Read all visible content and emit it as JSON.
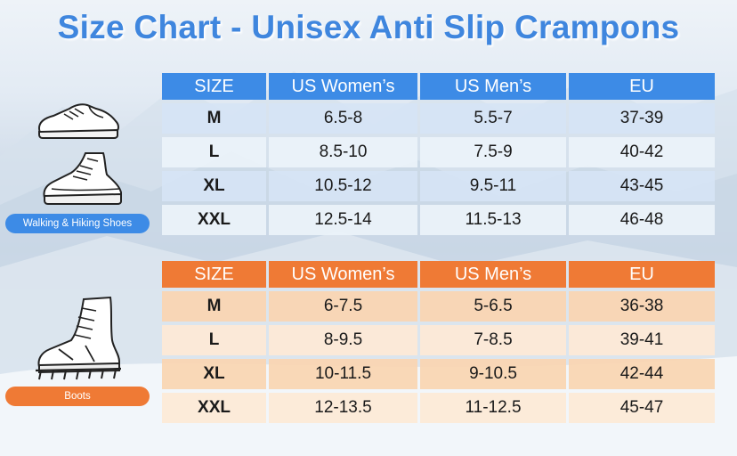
{
  "title": "Size Chart - Unisex Anti Slip Crampons",
  "colors": {
    "blue": "#3d8be6",
    "orange": "#ef7a35",
    "title": "#3f86de"
  },
  "columns": [
    "SIZE",
    "US Women’s",
    "US Men’s",
    "EU"
  ],
  "shoe_table": {
    "label": "Walking & Hiking Shoes",
    "rows": [
      [
        "M",
        "6.5-8",
        "5.5-7",
        "37-39"
      ],
      [
        "L",
        "8.5-10",
        "7.5-9",
        "40-42"
      ],
      [
        "XL",
        "10.5-12",
        "9.5-11",
        "43-45"
      ],
      [
        "XXL",
        "12.5-14",
        "11.5-13",
        "46-48"
      ]
    ]
  },
  "boot_table": {
    "label": "Boots",
    "rows": [
      [
        "M",
        "6-7.5",
        "5-6.5",
        "36-38"
      ],
      [
        "L",
        "8-9.5",
        "7-8.5",
        "39-41"
      ],
      [
        "XL",
        "10-11.5",
        "9-10.5",
        "42-44"
      ],
      [
        "XXL",
        "12-13.5",
        "11-12.5",
        "45-47"
      ]
    ]
  },
  "icons": [
    "walking-shoe-icon",
    "hiking-shoe-icon",
    "boot-with-crampon-icon"
  ]
}
